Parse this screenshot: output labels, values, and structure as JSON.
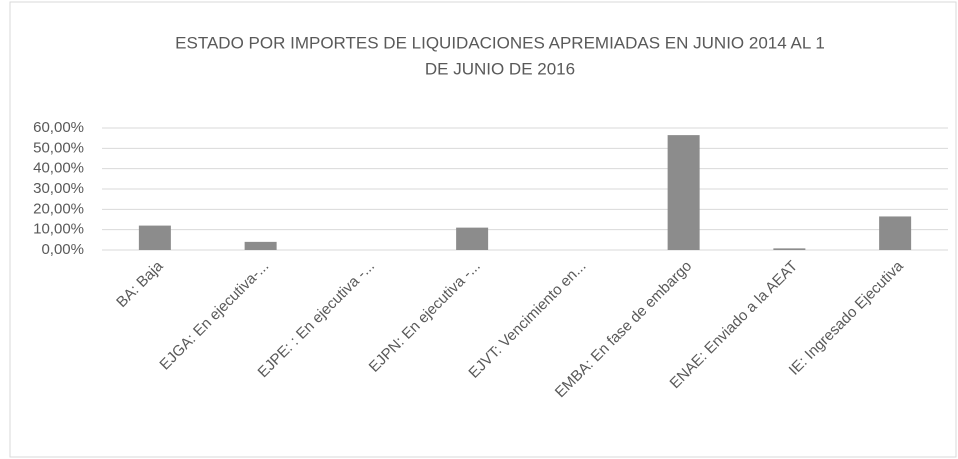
{
  "chart_data": {
    "type": "bar",
    "title": [
      "ESTADO POR IMPORTES  DE LIQUIDACIONES APREMIADAS EN JUNIO 2014 AL 1",
      "DE JUNIO DE 2016"
    ],
    "categories": [
      "BA: Baja",
      "EJGA: En ejecutiva-...",
      "EJPE: : En ejecutiva -...",
      "EJPN: En ejecutiva -...",
      "EJVT: Vencimiento en...",
      "EMBA: En fase de embargo",
      "ENAE: Enviado a la AEAT",
      "IE: Ingresado Ejecutiva"
    ],
    "values": [
      12,
      4,
      0,
      11,
      0,
      56.5,
      0.8,
      16.5
    ],
    "color": "#8c8c8c",
    "ylim": [
      0,
      60
    ],
    "yticks": [
      {
        "value": 0,
        "label": "0,00%"
      },
      {
        "value": 10,
        "label": "10,00%"
      },
      {
        "value": 20,
        "label": "20,00%"
      },
      {
        "value": 30,
        "label": "30,00%"
      },
      {
        "value": 40,
        "label": "40,00%"
      },
      {
        "value": 50,
        "label": "50,00%"
      },
      {
        "value": 60,
        "label": "60,00%"
      }
    ],
    "grid": true
  }
}
